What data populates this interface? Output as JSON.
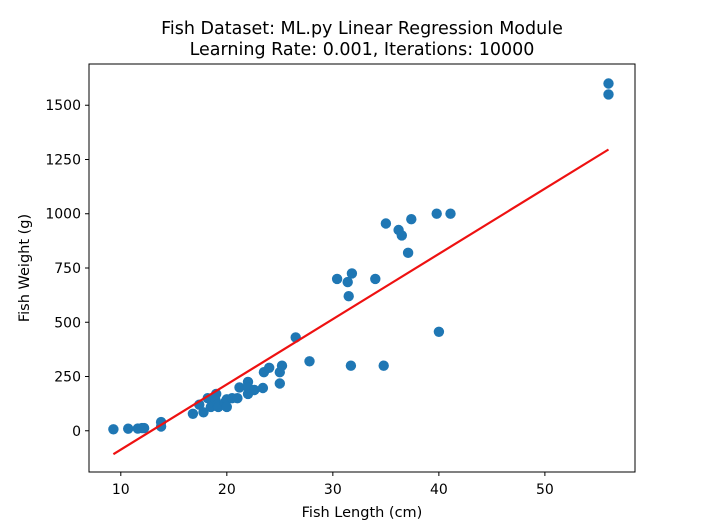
{
  "chart_data": {
    "type": "scatter",
    "title": "Fish Dataset: ML.py Linear Regression Module",
    "subtitle": "Learning Rate: 0.001, Iterations: 10000",
    "xlabel": "Fish Length (cm)",
    "ylabel": "Fish Weight (g)",
    "xlim": [
      7,
      58.5
    ],
    "ylim": [
      -190,
      1690
    ],
    "xticks": [
      10,
      20,
      30,
      40,
      50
    ],
    "yticks": [
      0,
      250,
      500,
      750,
      1000,
      1250,
      1500
    ],
    "grid": false,
    "legend": "none",
    "series": [
      {
        "type": "scatter",
        "color": "#1f77b4",
        "points": [
          [
            9.3,
            6.7
          ],
          [
            10.7,
            9.7
          ],
          [
            11.6,
            9.9
          ],
          [
            12.0,
            12.2
          ],
          [
            12.2,
            12.2
          ],
          [
            13.8,
            19.7
          ],
          [
            13.8,
            40.0
          ],
          [
            16.8,
            78.0
          ],
          [
            17.4,
            120.0
          ],
          [
            17.8,
            85.0
          ],
          [
            18.2,
            150.0
          ],
          [
            18.5,
            110.0
          ],
          [
            18.7,
            130.0
          ],
          [
            18.9,
            145.0
          ],
          [
            19.0,
            170.0
          ],
          [
            19.1,
            120.0
          ],
          [
            19.2,
            110.0
          ],
          [
            19.8,
            130.0
          ],
          [
            20.0,
            145.0
          ],
          [
            20.0,
            110.0
          ],
          [
            20.5,
            150.0
          ],
          [
            21.0,
            150.0
          ],
          [
            21.2,
            200.0
          ],
          [
            22.0,
            225.0
          ],
          [
            22.0,
            170.0
          ],
          [
            22.0,
            200.0
          ],
          [
            22.6,
            188.0
          ],
          [
            23.4,
            197.0
          ],
          [
            23.5,
            270.0
          ],
          [
            24.0,
            290.0
          ],
          [
            25.0,
            270.0
          ],
          [
            25.0,
            218.0
          ],
          [
            25.2,
            300.0
          ],
          [
            26.5,
            430.0
          ],
          [
            27.8,
            320.0
          ],
          [
            30.4,
            700.0
          ],
          [
            31.4,
            685.0
          ],
          [
            31.5,
            620.0
          ],
          [
            31.8,
            725.0
          ],
          [
            31.7,
            300.0
          ],
          [
            34.0,
            700.0
          ],
          [
            34.8,
            300.0
          ],
          [
            35.0,
            955.0
          ],
          [
            36.2,
            925.0
          ],
          [
            36.5,
            900.0
          ],
          [
            37.1,
            820.0
          ],
          [
            37.4,
            975.0
          ],
          [
            39.8,
            1000.0
          ],
          [
            40.0,
            456.0
          ],
          [
            41.1,
            1000.0
          ],
          [
            56.0,
            1550.0
          ],
          [
            56.0,
            1600.0
          ]
        ]
      },
      {
        "type": "line",
        "color": "#ee1111",
        "points": [
          [
            9.3,
            -108.0
          ],
          [
            56.0,
            1296.0
          ]
        ]
      }
    ]
  }
}
